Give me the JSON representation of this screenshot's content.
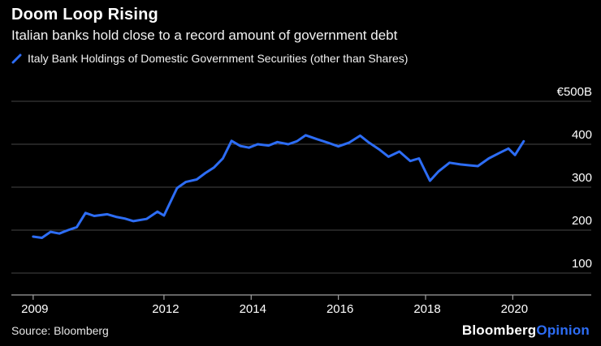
{
  "header": {
    "title": "Doom Loop Rising",
    "subtitle": "Italian banks hold close to a record amount of government debt"
  },
  "legend": {
    "label": "Italy Bank Holdings of Domestic Government Securities (other than Shares)"
  },
  "footer": {
    "source": "Source: Bloomberg",
    "brand": "Bloomberg",
    "brand_suffix": "Opinion"
  },
  "colors": {
    "background": "#000000",
    "line": "#2d6df5",
    "grid": "#464646",
    "axis": "#a0a0a0",
    "text": "#ffffff"
  },
  "chart_data": {
    "type": "line",
    "title": "Doom Loop Rising",
    "subtitle": "Italian banks hold close to a record amount of government debt",
    "series_name": "Italy Bank Holdings of Domestic Government Securities (other than Shares)",
    "ylabel": "€ billions",
    "unit_top_label": "€500B",
    "x": [
      2009.0,
      2009.2,
      2009.4,
      2009.6,
      2009.8,
      2010.0,
      2010.2,
      2010.4,
      2010.7,
      2010.9,
      2011.1,
      2011.3,
      2011.6,
      2011.85,
      2012.0,
      2012.3,
      2012.5,
      2012.75,
      2012.95,
      2013.15,
      2013.35,
      2013.55,
      2013.75,
      2013.95,
      2014.15,
      2014.4,
      2014.6,
      2014.85,
      2015.05,
      2015.25,
      2015.5,
      2015.75,
      2016.0,
      2016.25,
      2016.5,
      2016.7,
      2016.95,
      2017.15,
      2017.4,
      2017.65,
      2017.85,
      2018.1,
      2018.3,
      2018.55,
      2018.8,
      2019.0,
      2019.2,
      2019.45,
      2019.7,
      2019.9,
      2020.05,
      2020.25
    ],
    "values": [
      185,
      182,
      196,
      192,
      200,
      207,
      240,
      233,
      237,
      231,
      227,
      221,
      226,
      243,
      234,
      298,
      312,
      318,
      333,
      346,
      367,
      408,
      396,
      392,
      400,
      397,
      405,
      400,
      407,
      421,
      412,
      404,
      395,
      404,
      420,
      404,
      387,
      371,
      383,
      361,
      367,
      315,
      337,
      357,
      353,
      351,
      349,
      367,
      380,
      390,
      375,
      407
    ],
    "xlim": [
      2008.5,
      2021.8
    ],
    "ylim": [
      50,
      500
    ],
    "yticks": [
      100,
      200,
      300,
      400,
      500
    ],
    "ytick_labels": [
      "100",
      "200",
      "300",
      "400",
      "€500B"
    ],
    "xticks": [
      2009,
      2012,
      2014,
      2016,
      2018,
      2020
    ],
    "xtick_labels": [
      "2009",
      "2012",
      "2014",
      "2016",
      "2018",
      "2020"
    ],
    "grid": "horizontal",
    "legend_position": "top-left"
  }
}
